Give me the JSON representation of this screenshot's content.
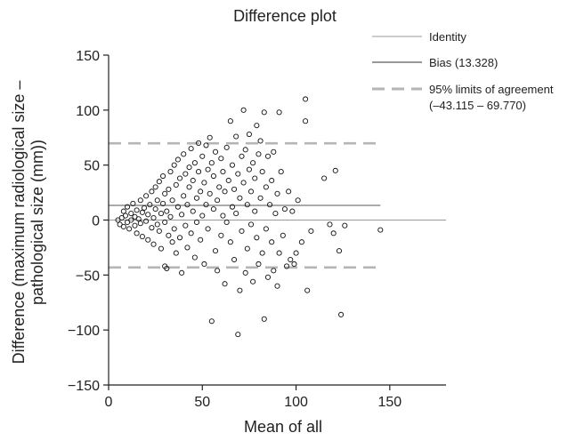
{
  "chart_data": {
    "type": "scatter",
    "title": "Difference plot",
    "xlabel": "Mean of all",
    "ylabel_lines": [
      "Difference (maximum radiological size –",
      "pathological size (mm))"
    ],
    "xlim": [
      0,
      180
    ],
    "ylim": [
      -150,
      150
    ],
    "x_ticks": [
      0,
      50,
      100,
      150
    ],
    "y_ticks": [
      150,
      100,
      50,
      0,
      -50,
      -100,
      -150
    ],
    "x_tick_labels": [
      "0",
      "50",
      "100",
      "150"
    ],
    "y_tick_labels": [
      "150",
      "100",
      "50",
      "0",
      "−50",
      "−100",
      "−150"
    ],
    "grid": false,
    "legend_position": "top-right",
    "legend": [
      {
        "label": "Identity",
        "style": "thin-solid",
        "color": "#999999"
      },
      {
        "label": "Bias (13.328)",
        "style": "solid",
        "color": "#777777"
      },
      {
        "label": "95% limits of agreement",
        "label2": "(–43.115 – 69.770)",
        "style": "dashed",
        "color": "#b5b5b5"
      }
    ],
    "lines": {
      "identity": 0,
      "bias": 13.328,
      "bias_x_end": 145,
      "loa_lower": -43.115,
      "loa_upper": 69.77
    },
    "points": [
      [
        5,
        0
      ],
      [
        6,
        -4
      ],
      [
        7,
        2
      ],
      [
        8,
        8
      ],
      [
        8,
        -6
      ],
      [
        9,
        4
      ],
      [
        10,
        -2
      ],
      [
        10,
        12
      ],
      [
        11,
        -8
      ],
      [
        12,
        6
      ],
      [
        12,
        0
      ],
      [
        13,
        15
      ],
      [
        14,
        -5
      ],
      [
        14,
        3
      ],
      [
        15,
        9
      ],
      [
        15,
        -12
      ],
      [
        16,
        1
      ],
      [
        17,
        18
      ],
      [
        17,
        -3
      ],
      [
        18,
        7
      ],
      [
        18,
        -15
      ],
      [
        19,
        11
      ],
      [
        20,
        -1
      ],
      [
        20,
        22
      ],
      [
        21,
        5
      ],
      [
        21,
        -18
      ],
      [
        22,
        14
      ],
      [
        23,
        -7
      ],
      [
        23,
        26
      ],
      [
        24,
        2
      ],
      [
        24,
        -22
      ],
      [
        25,
        10
      ],
      [
        25,
        30
      ],
      [
        26,
        -4
      ],
      [
        26,
        18
      ],
      [
        27,
        -10
      ],
      [
        27,
        35
      ],
      [
        28,
        6
      ],
      [
        28,
        -26
      ],
      [
        29,
        15
      ],
      [
        29,
        40
      ],
      [
        30,
        -2
      ],
      [
        30,
        24
      ],
      [
        30,
        -42
      ],
      [
        31,
        8
      ],
      [
        31,
        -44
      ],
      [
        32,
        28
      ],
      [
        32,
        -14
      ],
      [
        33,
        44
      ],
      [
        33,
        3
      ],
      [
        34,
        -20
      ],
      [
        34,
        18
      ],
      [
        35,
        50
      ],
      [
        35,
        -8
      ],
      [
        36,
        32
      ],
      [
        36,
        -30
      ],
      [
        37,
        12
      ],
      [
        37,
        55
      ],
      [
        38,
        -16
      ],
      [
        38,
        38
      ],
      [
        39,
        5
      ],
      [
        39,
        -48
      ],
      [
        40,
        22
      ],
      [
        40,
        60
      ],
      [
        41,
        -5
      ],
      [
        41,
        42
      ],
      [
        42,
        14
      ],
      [
        42,
        -25
      ],
      [
        43,
        48
      ],
      [
        43,
        30
      ],
      [
        44,
        -12
      ],
      [
        44,
        65
      ],
      [
        45,
        8
      ],
      [
        45,
        36
      ],
      [
        46,
        -34
      ],
      [
        46,
        52
      ],
      [
        47,
        20
      ],
      [
        47,
        -2
      ],
      [
        48,
        70
      ],
      [
        48,
        44
      ],
      [
        49,
        -18
      ],
      [
        49,
        26
      ],
      [
        50,
        58
      ],
      [
        50,
        4
      ],
      [
        51,
        -40
      ],
      [
        51,
        34
      ],
      [
        52,
        68
      ],
      [
        52,
        14
      ],
      [
        53,
        46
      ],
      [
        53,
        -8
      ],
      [
        54,
        75
      ],
      [
        54,
        24
      ],
      [
        55,
        -92
      ],
      [
        55,
        52
      ],
      [
        56,
        10
      ],
      [
        56,
        40
      ],
      [
        57,
        -28
      ],
      [
        57,
        62
      ],
      [
        58,
        18
      ],
      [
        58,
        -46
      ],
      [
        59,
        30
      ],
      [
        60,
        56
      ],
      [
        60,
        -14
      ],
      [
        61,
        4
      ],
      [
        61,
        44
      ],
      [
        62,
        -58
      ],
      [
        62,
        26
      ],
      [
        63,
        66
      ],
      [
        63,
        -2
      ],
      [
        64,
        36
      ],
      [
        65,
        90
      ],
      [
        65,
        -20
      ],
      [
        66,
        12
      ],
      [
        66,
        50
      ],
      [
        67,
        -36
      ],
      [
        67,
        28
      ],
      [
        68,
        76
      ],
      [
        68,
        6
      ],
      [
        69,
        -104
      ],
      [
        69,
        42
      ],
      [
        70,
        -64
      ],
      [
        70,
        20
      ],
      [
        71,
        58
      ],
      [
        71,
        -10
      ],
      [
        72,
        100
      ],
      [
        72,
        34
      ],
      [
        73,
        -48
      ],
      [
        73,
        64
      ],
      [
        74,
        14
      ],
      [
        74,
        -26
      ],
      [
        75,
        46
      ],
      [
        75,
        78
      ],
      [
        76,
        -4
      ],
      [
        76,
        26
      ],
      [
        77,
        -56
      ],
      [
        77,
        52
      ],
      [
        78,
        8
      ],
      [
        78,
        38
      ],
      [
        79,
        -16
      ],
      [
        79,
        86
      ],
      [
        80,
        60
      ],
      [
        80,
        -40
      ],
      [
        81,
        20
      ],
      [
        81,
        72
      ],
      [
        82,
        -30
      ],
      [
        82,
        44
      ],
      [
        83,
        98
      ],
      [
        83,
        -90
      ],
      [
        84,
        30
      ],
      [
        84,
        -8
      ],
      [
        85,
        58
      ],
      [
        85,
        -52
      ],
      [
        86,
        14
      ],
      [
        87,
        -20
      ],
      [
        87,
        36
      ],
      [
        88,
        62
      ],
      [
        88,
        -46
      ],
      [
        89,
        6
      ],
      [
        90,
        24
      ],
      [
        90,
        -60
      ],
      [
        91,
        98
      ],
      [
        91,
        -30
      ],
      [
        92,
        44
      ],
      [
        93,
        -14
      ],
      [
        94,
        10
      ],
      [
        95,
        -42
      ],
      [
        96,
        26
      ],
      [
        97,
        -36
      ],
      [
        98,
        8
      ],
      [
        99,
        -40
      ],
      [
        100,
        -30
      ],
      [
        101,
        18
      ],
      [
        103,
        -20
      ],
      [
        105,
        90
      ],
      [
        105,
        110
      ],
      [
        106,
        -64
      ],
      [
        108,
        -10
      ],
      [
        115,
        38
      ],
      [
        118,
        -4
      ],
      [
        120,
        -12
      ],
      [
        121,
        45
      ],
      [
        123,
        -28
      ],
      [
        124,
        -86
      ],
      [
        126,
        -5
      ],
      [
        145,
        -9
      ]
    ]
  }
}
